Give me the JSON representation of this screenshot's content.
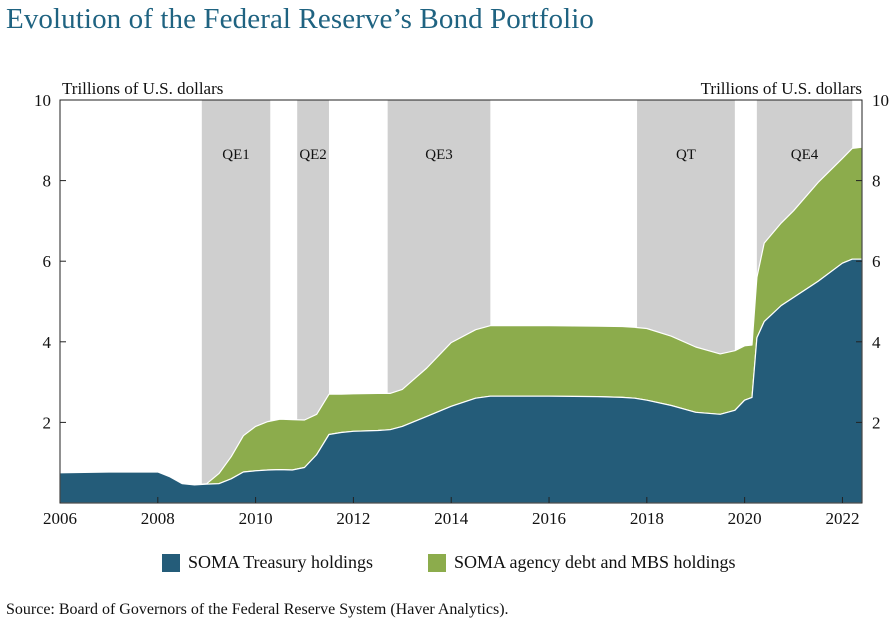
{
  "title": "Evolution of the Federal Reserve’s Bond Portfolio",
  "source": "Source: Board of Governors of the Federal Reserve System (Haver Analytics).",
  "colors": {
    "title": "#1f6381",
    "treasury": "#245c79",
    "agency": "#8cac4c",
    "shading": "#cfcfcf"
  },
  "chart_data": {
    "type": "area",
    "stacked": true,
    "y_left_label": "Trillions of U.S. dollars",
    "y_right_label": "Trillions of U.S. dollars",
    "ylim": [
      0,
      10
    ],
    "xlim": [
      2006,
      2022.4
    ],
    "x_ticks": [
      "2006",
      "2008",
      "2010",
      "2012",
      "2014",
      "2016",
      "2018",
      "2020",
      "2022"
    ],
    "y_ticks_left": [
      "2",
      "4",
      "6",
      "8",
      "10"
    ],
    "y_ticks_right": [
      "2",
      "4",
      "6",
      "8",
      "10"
    ],
    "shaded_periods": [
      {
        "label": "QE1",
        "start": 2008.9,
        "end": 2010.3
      },
      {
        "label": "QE2",
        "start": 2010.85,
        "end": 2011.5
      },
      {
        "label": "QE3",
        "start": 2012.7,
        "end": 2014.8
      },
      {
        "label": "QT",
        "start": 2017.8,
        "end": 2019.8
      },
      {
        "label": "QE4",
        "start": 2020.25,
        "end": 2022.2
      }
    ],
    "x": [
      2006.0,
      2007.0,
      2008.0,
      2008.25,
      2008.5,
      2008.75,
      2009.0,
      2009.25,
      2009.5,
      2009.75,
      2010.0,
      2010.25,
      2010.5,
      2010.75,
      2011.0,
      2011.25,
      2011.5,
      2011.75,
      2012.0,
      2012.5,
      2012.75,
      2013.0,
      2013.5,
      2014.0,
      2014.5,
      2014.8,
      2015.0,
      2016.0,
      2017.0,
      2017.5,
      2017.75,
      2018.0,
      2018.5,
      2019.0,
      2019.5,
      2019.8,
      2020.0,
      2020.15,
      2020.25,
      2020.4,
      2020.75,
      2021.0,
      2021.5,
      2022.0,
      2022.2,
      2022.4
    ],
    "series": [
      {
        "name": "SOMA Treasury holdings",
        "values": [
          0.75,
          0.77,
          0.77,
          0.65,
          0.48,
          0.45,
          0.47,
          0.48,
          0.6,
          0.77,
          0.8,
          0.82,
          0.83,
          0.82,
          0.88,
          1.2,
          1.7,
          1.75,
          1.78,
          1.8,
          1.82,
          1.9,
          2.15,
          2.4,
          2.6,
          2.65,
          2.65,
          2.65,
          2.64,
          2.62,
          2.6,
          2.55,
          2.42,
          2.25,
          2.2,
          2.3,
          2.55,
          2.62,
          4.1,
          4.5,
          4.9,
          5.1,
          5.5,
          5.95,
          6.05,
          6.05
        ]
      },
      {
        "name": "SOMA agency debt and MBS holdings",
        "values": [
          0.0,
          0.0,
          0.0,
          0.0,
          0.0,
          0.0,
          0.01,
          0.25,
          0.55,
          0.9,
          1.1,
          1.2,
          1.25,
          1.25,
          1.18,
          1.0,
          1.0,
          0.95,
          0.93,
          0.92,
          0.9,
          0.92,
          1.2,
          1.58,
          1.7,
          1.75,
          1.75,
          1.75,
          1.75,
          1.76,
          1.76,
          1.78,
          1.72,
          1.62,
          1.5,
          1.48,
          1.35,
          1.3,
          1.5,
          1.95,
          2.05,
          2.15,
          2.45,
          2.6,
          2.75,
          2.78
        ]
      }
    ]
  }
}
